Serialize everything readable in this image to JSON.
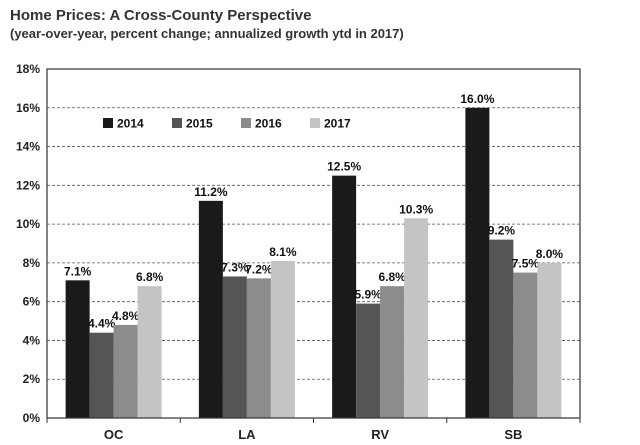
{
  "chart_data": {
    "type": "bar",
    "title": "Home Prices: A Cross-County Perspective",
    "subtitle": "(year-over-year, percent change; annualized growth ytd in 2017)",
    "categories": [
      "OC",
      "LA",
      "RV",
      "SB"
    ],
    "series": [
      {
        "name": "2014",
        "color": "#1a1a1a",
        "values": [
          7.1,
          11.2,
          12.5,
          16.0
        ],
        "labels": [
          "7.1%",
          "11.2%",
          "12.5%",
          "16.0%"
        ]
      },
      {
        "name": "2015",
        "color": "#555555",
        "values": [
          4.4,
          7.3,
          5.9,
          9.2
        ],
        "labels": [
          "4.4%",
          "7.3%",
          "5.9%",
          "9.2%"
        ]
      },
      {
        "name": "2016",
        "color": "#8c8c8c",
        "values": [
          4.8,
          7.2,
          6.8,
          7.5
        ],
        "labels": [
          "4.8%",
          "7.2%",
          "6.8%",
          "7.5%"
        ]
      },
      {
        "name": "2017",
        "color": "#c4c4c4",
        "values": [
          6.8,
          8.1,
          10.3,
          8.0
        ],
        "labels": [
          "6.8%",
          "8.1%",
          "10.3%",
          "8.0%"
        ]
      }
    ],
    "yticks": [
      "0%",
      "2%",
      "4%",
      "6%",
      "8%",
      "10%",
      "12%",
      "14%",
      "16%",
      "18%"
    ],
    "ylim": [
      0,
      18
    ],
    "grid": "horizontal dashed",
    "legend_position": "top-left"
  }
}
